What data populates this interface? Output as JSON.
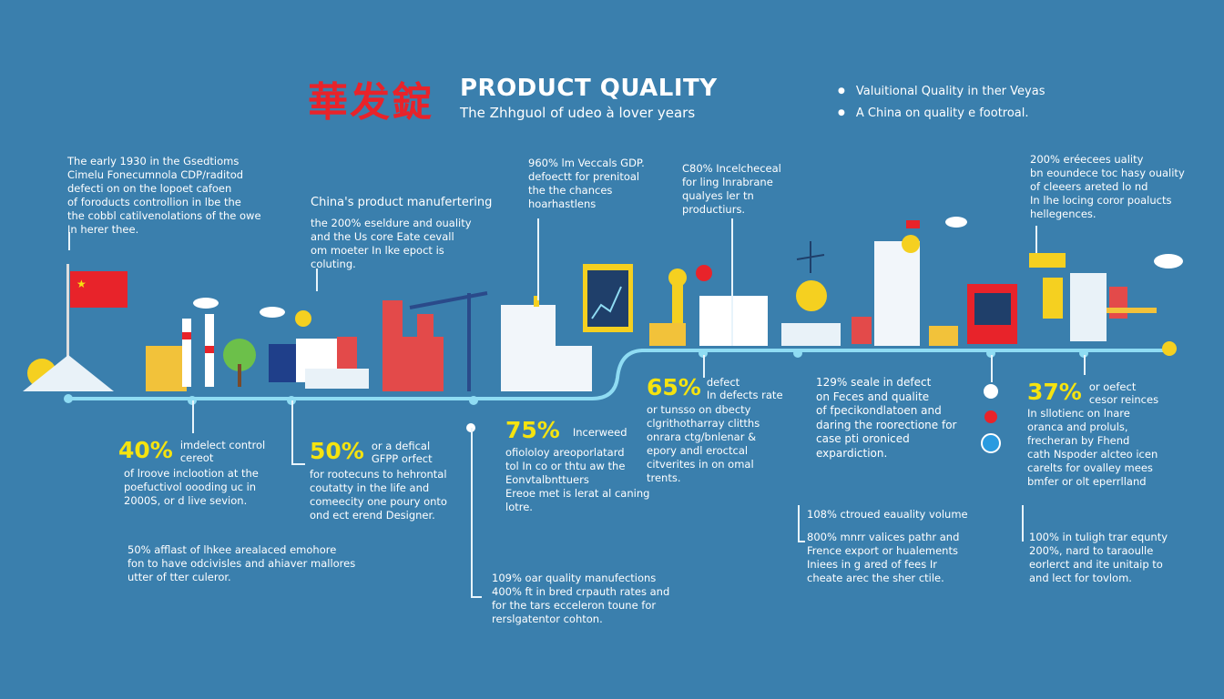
{
  "header": {
    "logo_chars": "華发錠",
    "title": "PRODUCT QUALITY",
    "subtitle": "The Zhhguol of udeo à lover years",
    "bullets": [
      "Valuitional Quality in ther Veyas",
      "A China on quality e footroal."
    ]
  },
  "top_blocks": [
    {
      "lines": [
        "The early 1930 in the Gsedtioms",
        "Cimelu Fonecumnola CDP/raditod",
        "defecti on on the lopoet cafoen",
        "of foroducts controllion in lbe the",
        "the cobbl catilvenolations of the owe",
        "In herer thee."
      ]
    },
    {
      "heading": "China's product manufertering",
      "lines": [
        "the 200% eseldure and ouality",
        "and the Us core Eate cevall",
        "om moeter In lke epoct is",
        "coluting."
      ]
    },
    {
      "lines": [
        "960% lm Veccals GDP.",
        "defoectt for prenitoal",
        "the the chances",
        "hoarhastlens"
      ]
    },
    {
      "lines": [
        "C80% Incelcheceal",
        "for ling lnrabrane",
        "qualyes ler tn",
        "productiurs."
      ]
    },
    {
      "lines": [
        "200% eréecees uality",
        "bn eoundece toc hasy ouality",
        "of cleeers areted lo nd",
        "In lhe locing coror poalucts",
        "hellegences."
      ]
    }
  ],
  "stats": [
    {
      "value": "40%",
      "label": [
        "imdelect control",
        "cereot"
      ],
      "lines": [
        "of lroove inclootion at the",
        "poefuctivol oooding uc in",
        "2000S, or d live sevion."
      ]
    },
    {
      "value": "50%",
      "label": [
        "or a defical",
        "GFPP orfect"
      ],
      "lines": [
        "for rootecuns to hehrontal",
        "coutatty in the life and",
        "comeecity one poury onto",
        "ond ect erend Designer."
      ]
    },
    {
      "value": "75%",
      "label": [
        "Incerweed"
      ],
      "lines": [
        "ofiololoy areoporlatard",
        "tol In co or thtu aw the",
        "Eonvtalbnttuers",
        "Ereoe met is lerat al caning",
        "lotre."
      ]
    },
    {
      "value": "65%",
      "label": [
        "defect",
        "In defects rate"
      ],
      "lines": [
        "or tunsso on dbecty",
        "clgrithotharray clitths",
        "onrara ctg/bnlenar &",
        "epory andl eroctcal",
        "citverites in on omal",
        "trents."
      ]
    },
    {
      "value": "",
      "label": [],
      "lines": [
        "129% seale in defect",
        "on Feces and qualite",
        "of fpecikondlatoen and",
        "daring the roorectione for",
        "case pti oroniced",
        "expardiction."
      ]
    },
    {
      "value": "37%",
      "label": [
        "or oefect",
        "cesor reinces"
      ],
      "lines": [
        "In sllotienc on lnare",
        "oranca and proluls,",
        "frecheran by Fhend",
        "cath Nspoder alcteo icen",
        "carelts for ovalley mees",
        "bmfer or olt eperrlland"
      ]
    }
  ],
  "bottom_blocks": [
    {
      "lines": [
        "50% afflast of lhkee arealaced emohore",
        "fon to have odcivisles and ahiaver mallores",
        "utter of tter culeror."
      ]
    },
    {
      "lines": [
        "109% oar quality manufections",
        "400% ft in bred crpauth rates and",
        "for the tars ecceleron toune for",
        "rerslgatentor cohton."
      ]
    },
    {
      "heading": "108% ctroued eauality volume",
      "lines": [
        "800% mnrr valices pathr and",
        "Frence export or hualements",
        "Iniees in g ared of fees Ir",
        "cheate arec the sher ctile."
      ]
    },
    {
      "lines": [
        "100% in tuligh trar equnty",
        "200%, nard to taraoulle",
        "eorlerct and ite unitaip to",
        "and lect for tovlom."
      ]
    }
  ],
  "colors": {
    "background": "#3a7fad",
    "timeline": "#8fdcf3",
    "accent_yellow": "#f5e30f",
    "logo_red": "#e8232a"
  }
}
